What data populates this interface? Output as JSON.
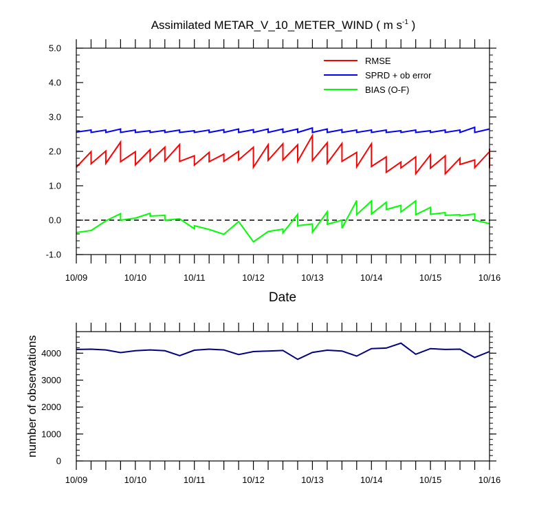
{
  "chart_data": [
    {
      "type": "line",
      "title": "Assimilated METAR_V_10_METER_WIND",
      "title_units": "m s",
      "title_units_exponent": "-1",
      "xlabel": "Date",
      "ylabel": "",
      "ylim": [
        -1.0,
        5.0
      ],
      "yticks": [
        "-1.0",
        "0.0",
        "1.0",
        "2.0",
        "3.0",
        "4.0",
        "5.0"
      ],
      "x_tick_labels": [
        "10/09",
        "10/10",
        "10/11",
        "10/12",
        "10/13",
        "10/14",
        "10/15",
        "10/16"
      ],
      "xlim_days": [
        0,
        7
      ],
      "x_note": "x values are days since 10/09 00Z; each 6-hour window drawn as prior (left) and posterior (right) value",
      "legend_position": "top-right",
      "zero_line": "dashed",
      "series": [
        {
          "name": "RMSE",
          "color": "#ff0000",
          "points": [
            [
              0.0,
              1.54
            ],
            [
              0.25,
              1.99
            ],
            [
              0.25,
              1.64
            ],
            [
              0.5,
              2.01
            ],
            [
              0.5,
              1.65
            ],
            [
              0.75,
              2.27
            ],
            [
              0.75,
              1.7
            ],
            [
              1.0,
              1.99
            ],
            [
              1.0,
              1.61
            ],
            [
              1.25,
              2.05
            ],
            [
              1.25,
              1.71
            ],
            [
              1.5,
              2.12
            ],
            [
              1.5,
              1.72
            ],
            [
              1.75,
              2.2
            ],
            [
              1.75,
              1.71
            ],
            [
              2.0,
              1.87
            ],
            [
              2.0,
              1.6
            ],
            [
              2.25,
              1.97
            ],
            [
              2.25,
              1.7
            ],
            [
              2.5,
              1.92
            ],
            [
              2.5,
              1.71
            ],
            [
              2.75,
              2.0
            ],
            [
              2.75,
              1.75
            ],
            [
              3.0,
              2.12
            ],
            [
              3.0,
              1.54
            ],
            [
              3.25,
              2.19
            ],
            [
              3.25,
              1.74
            ],
            [
              3.5,
              2.22
            ],
            [
              3.5,
              1.75
            ],
            [
              3.75,
              2.19
            ],
            [
              3.75,
              1.71
            ],
            [
              4.0,
              2.46
            ],
            [
              4.0,
              1.73
            ],
            [
              4.25,
              2.25
            ],
            [
              4.25,
              1.65
            ],
            [
              4.5,
              2.23
            ],
            [
              4.5,
              1.71
            ],
            [
              4.75,
              1.97
            ],
            [
              4.75,
              1.55
            ],
            [
              5.0,
              2.22
            ],
            [
              5.0,
              1.56
            ],
            [
              5.25,
              1.84
            ],
            [
              5.25,
              1.39
            ],
            [
              5.5,
              1.69
            ],
            [
              5.5,
              1.52
            ],
            [
              5.75,
              1.84
            ],
            [
              5.75,
              1.35
            ],
            [
              6.0,
              1.9
            ],
            [
              6.0,
              1.51
            ],
            [
              6.25,
              1.87
            ],
            [
              6.25,
              1.35
            ],
            [
              6.5,
              1.8
            ],
            [
              6.5,
              1.62
            ],
            [
              6.75,
              1.75
            ],
            [
              6.75,
              1.53
            ],
            [
              7.0,
              1.99
            ],
            [
              7.0,
              1.51
            ],
            [
              7.0,
              2.08
            ]
          ]
        },
        {
          "name": "SPRD + ob error",
          "color": "#0000ff",
          "points": [
            [
              0.0,
              2.56
            ],
            [
              0.25,
              2.62
            ],
            [
              0.25,
              2.55
            ],
            [
              0.5,
              2.62
            ],
            [
              0.5,
              2.55
            ],
            [
              0.75,
              2.65
            ],
            [
              0.75,
              2.55
            ],
            [
              1.0,
              2.62
            ],
            [
              1.0,
              2.55
            ],
            [
              1.25,
              2.6
            ],
            [
              1.25,
              2.55
            ],
            [
              1.5,
              2.61
            ],
            [
              1.5,
              2.55
            ],
            [
              1.75,
              2.62
            ],
            [
              1.75,
              2.55
            ],
            [
              2.0,
              2.6
            ],
            [
              2.0,
              2.55
            ],
            [
              2.25,
              2.62
            ],
            [
              2.25,
              2.55
            ],
            [
              2.5,
              2.63
            ],
            [
              2.5,
              2.55
            ],
            [
              2.75,
              2.65
            ],
            [
              2.75,
              2.55
            ],
            [
              3.0,
              2.63
            ],
            [
              3.0,
              2.55
            ],
            [
              3.25,
              2.65
            ],
            [
              3.25,
              2.55
            ],
            [
              3.5,
              2.65
            ],
            [
              3.5,
              2.55
            ],
            [
              3.75,
              2.65
            ],
            [
              3.75,
              2.55
            ],
            [
              4.0,
              2.68
            ],
            [
              4.0,
              2.55
            ],
            [
              4.25,
              2.65
            ],
            [
              4.25,
              2.55
            ],
            [
              4.5,
              2.63
            ],
            [
              4.5,
              2.55
            ],
            [
              4.75,
              2.62
            ],
            [
              4.75,
              2.55
            ],
            [
              5.0,
              2.62
            ],
            [
              5.0,
              2.55
            ],
            [
              5.25,
              2.62
            ],
            [
              5.25,
              2.55
            ],
            [
              5.5,
              2.6
            ],
            [
              5.5,
              2.55
            ],
            [
              5.75,
              2.62
            ],
            [
              5.75,
              2.55
            ],
            [
              6.0,
              2.6
            ],
            [
              6.0,
              2.55
            ],
            [
              6.25,
              2.62
            ],
            [
              6.25,
              2.55
            ],
            [
              6.5,
              2.62
            ],
            [
              6.5,
              2.55
            ],
            [
              6.75,
              2.7
            ],
            [
              6.75,
              2.55
            ],
            [
              7.0,
              2.65
            ]
          ]
        },
        {
          "name": "BIAS (O-F)",
          "color": "#00ff00",
          "points": [
            [
              0.0,
              -0.36
            ],
            [
              0.25,
              -0.3
            ],
            [
              0.5,
              -0.02
            ],
            [
              0.75,
              0.19
            ],
            [
              0.75,
              0.0
            ],
            [
              1.0,
              0.06
            ],
            [
              1.25,
              0.2
            ],
            [
              1.25,
              0.12
            ],
            [
              1.5,
              0.14
            ],
            [
              1.5,
              0.0
            ],
            [
              1.75,
              0.04
            ],
            [
              2.0,
              -0.25
            ],
            [
              2.0,
              -0.16
            ],
            [
              2.25,
              -0.27
            ],
            [
              2.5,
              -0.41
            ],
            [
              2.75,
              -0.04
            ],
            [
              3.0,
              -0.63
            ],
            [
              3.25,
              -0.33
            ],
            [
              3.5,
              -0.26
            ],
            [
              3.5,
              -0.37
            ],
            [
              3.75,
              0.17
            ],
            [
              3.75,
              -0.16
            ],
            [
              4.0,
              -0.11
            ],
            [
              4.0,
              -0.35
            ],
            [
              4.25,
              0.24
            ],
            [
              4.25,
              -0.12
            ],
            [
              4.5,
              0.0
            ],
            [
              4.5,
              -0.23
            ],
            [
              4.75,
              0.57
            ],
            [
              4.75,
              0.16
            ],
            [
              5.0,
              0.56
            ],
            [
              5.0,
              0.18
            ],
            [
              5.25,
              0.52
            ],
            [
              5.25,
              0.31
            ],
            [
              5.5,
              0.43
            ],
            [
              5.5,
              0.24
            ],
            [
              5.75,
              0.56
            ],
            [
              5.75,
              0.16
            ],
            [
              6.0,
              0.37
            ],
            [
              6.0,
              0.17
            ],
            [
              6.25,
              0.22
            ],
            [
              6.25,
              0.14
            ],
            [
              6.5,
              0.16
            ],
            [
              6.5,
              0.13
            ],
            [
              6.75,
              0.18
            ],
            [
              6.75,
              0.0
            ],
            [
              7.0,
              -0.1
            ]
          ]
        }
      ]
    },
    {
      "type": "line",
      "title": "",
      "xlabel": "",
      "ylabel": "number of observations",
      "ylim": [
        0,
        4800
      ],
      "yticks": [
        "0",
        "1000",
        "2000",
        "3000",
        "4000"
      ],
      "x_tick_labels": [
        "10/09",
        "10/10",
        "10/11",
        "10/12",
        "10/13",
        "10/14",
        "10/15",
        "10/16"
      ],
      "xlim_days": [
        0,
        7
      ],
      "series": [
        {
          "name": "",
          "color": "#000080",
          "points": [
            [
              0.0,
              4140
            ],
            [
              0.25,
              4150
            ],
            [
              0.5,
              4120
            ],
            [
              0.75,
              4020
            ],
            [
              1.0,
              4090
            ],
            [
              1.25,
              4120
            ],
            [
              1.5,
              4090
            ],
            [
              1.75,
              3910
            ],
            [
              2.0,
              4110
            ],
            [
              2.25,
              4150
            ],
            [
              2.5,
              4120
            ],
            [
              2.75,
              3950
            ],
            [
              3.0,
              4060
            ],
            [
              3.25,
              4080
            ],
            [
              3.5,
              4100
            ],
            [
              3.75,
              3770
            ],
            [
              4.0,
              4030
            ],
            [
              4.25,
              4110
            ],
            [
              4.5,
              4080
            ],
            [
              4.75,
              3890
            ],
            [
              5.0,
              4170
            ],
            [
              5.25,
              4190
            ],
            [
              5.5,
              4370
            ],
            [
              5.75,
              3960
            ],
            [
              6.0,
              4170
            ],
            [
              6.25,
              4140
            ],
            [
              6.5,
              4150
            ],
            [
              6.75,
              3840
            ],
            [
              7.0,
              4060
            ]
          ]
        }
      ]
    }
  ]
}
